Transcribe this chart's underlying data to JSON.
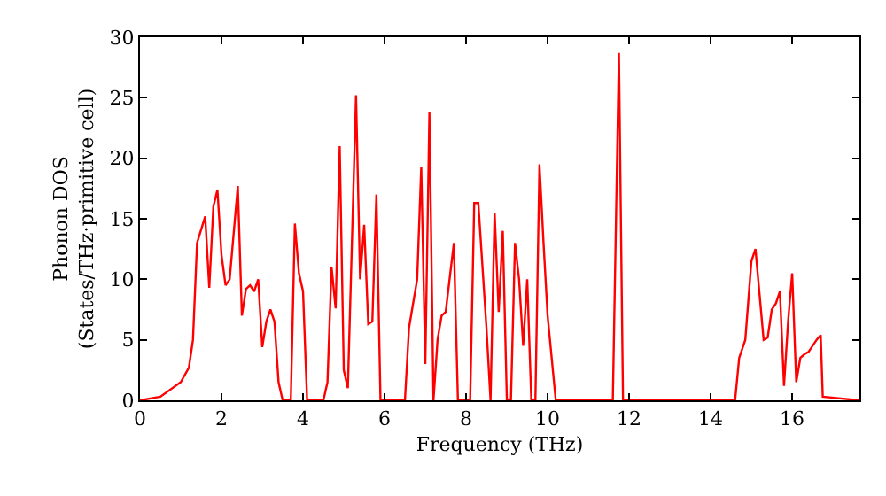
{
  "chart_data": {
    "type": "line",
    "xlabel": "Frequency (THz)",
    "ylabel": "Phonon DOS\n(States/THz·primitive cell)",
    "x": [
      0,
      0.5,
      1.0,
      1.2,
      1.3,
      1.4,
      1.6,
      1.7,
      1.8,
      1.9,
      2.0,
      2.1,
      2.2,
      2.4,
      2.5,
      2.6,
      2.7,
      2.8,
      2.9,
      3.0,
      3.1,
      3.2,
      3.3,
      3.4,
      3.5,
      3.7,
      3.8,
      3.9,
      4.0,
      4.1,
      4.5,
      4.6,
      4.7,
      4.8,
      4.9,
      5.0,
      5.1,
      5.3,
      5.4,
      5.5,
      5.6,
      5.7,
      5.8,
      5.9,
      6.5,
      6.6,
      6.8,
      6.9,
      7.0,
      7.1,
      7.2,
      7.3,
      7.4,
      7.5,
      7.7,
      7.8,
      8.1,
      8.2,
      8.3,
      8.5,
      8.6,
      8.7,
      8.8,
      8.9,
      9.0,
      9.1,
      9.2,
      9.3,
      9.4,
      9.5,
      9.6,
      9.7,
      9.8,
      9.9,
      10.0,
      10.2,
      11.6,
      11.75,
      11.85,
      14.6,
      14.7,
      14.85,
      15.0,
      15.1,
      15.3,
      15.4,
      15.5,
      15.6,
      15.7,
      15.8,
      15.9,
      16.0,
      16.1,
      16.2,
      16.3,
      16.4,
      16.6,
      16.7,
      16.75,
      17.65
    ],
    "series": [
      {
        "color": "#ff0000",
        "values": [
          0,
          0.3,
          1.5,
          2.7,
          5,
          13,
          15.2,
          9.3,
          16,
          17.4,
          12,
          9.5,
          10,
          17.7,
          7,
          9.2,
          9.5,
          9,
          10,
          4.4,
          6.5,
          7.5,
          6.5,
          1.5,
          0,
          0,
          14.6,
          10.5,
          9,
          0,
          0,
          1.5,
          11,
          7.6,
          21,
          2.5,
          1,
          25.2,
          10,
          14.5,
          6.3,
          6.5,
          17,
          0,
          0,
          6,
          10,
          19.3,
          3,
          23.8,
          0,
          5,
          7,
          7.3,
          13,
          0,
          0,
          16.3,
          16.3,
          6,
          0,
          15.5,
          7.3,
          14,
          0,
          0,
          13,
          10,
          4.5,
          10,
          0,
          0,
          19.5,
          13,
          7,
          0,
          0,
          28.7,
          0,
          0,
          3.5,
          5,
          11.5,
          12.5,
          5,
          5.2,
          7.5,
          8,
          9,
          1.2,
          6.5,
          10.5,
          1.5,
          3.5,
          3.8,
          4,
          5,
          5.4,
          0.3,
          0
        ]
      }
    ],
    "xlim": [
      0,
      17.65
    ],
    "ylim": [
      0,
      30
    ],
    "xticks": [
      0,
      2,
      4,
      6,
      8,
      10,
      12,
      14,
      16
    ],
    "yticks": [
      0,
      5,
      10,
      15,
      20,
      25,
      30
    ],
    "grid": false,
    "marker": "none",
    "line_style": "solid"
  }
}
